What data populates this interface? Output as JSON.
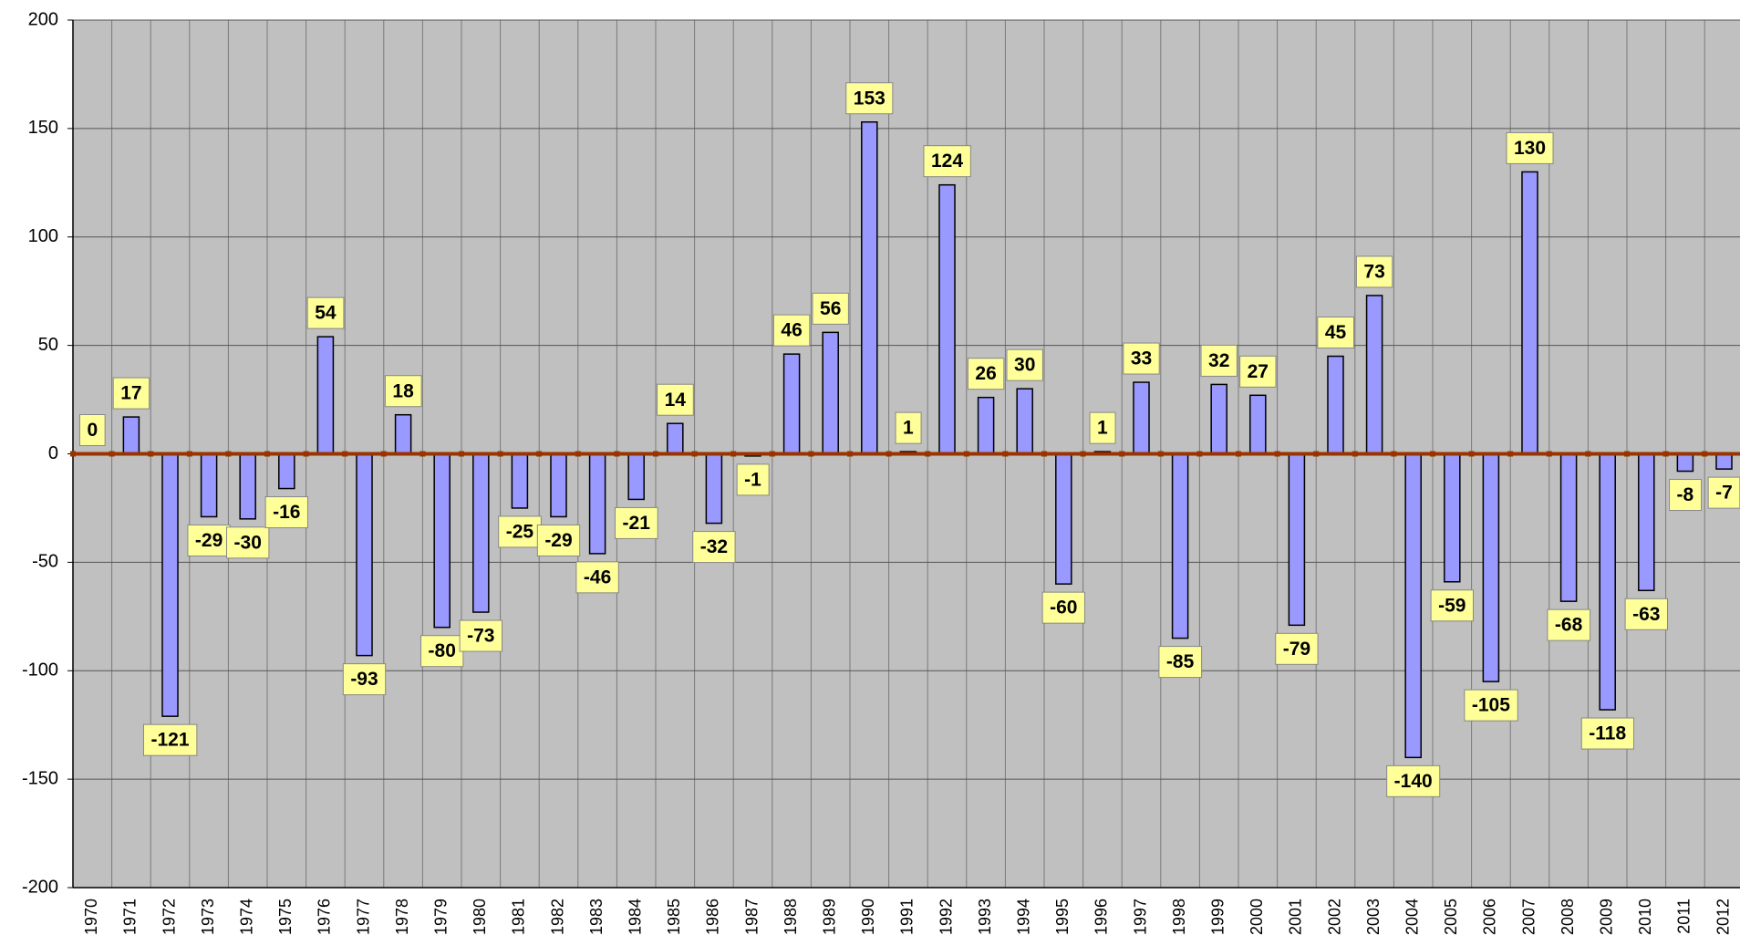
{
  "chart_data": {
    "type": "bar",
    "categories": [
      "1970",
      "1971",
      "1972",
      "1973",
      "1974",
      "1975",
      "1976",
      "1977",
      "1978",
      "1979",
      "1980",
      "1981",
      "1982",
      "1983",
      "1984",
      "1985",
      "1986",
      "1987",
      "1988",
      "1989",
      "1990",
      "1991",
      "1992",
      "1993",
      "1994",
      "1995",
      "1996",
      "1997",
      "1998",
      "1999",
      "2000",
      "2001",
      "2002",
      "2003",
      "2004",
      "2005",
      "2006",
      "2007",
      "2008",
      "2009",
      "2010",
      "2011",
      "2012"
    ],
    "values": [
      0,
      17,
      -121,
      -29,
      -30,
      -16,
      54,
      -93,
      18,
      -80,
      -73,
      -25,
      -29,
      -46,
      -21,
      14,
      -32,
      -1,
      46,
      56,
      153,
      1,
      124,
      26,
      30,
      -60,
      1,
      33,
      -85,
      32,
      27,
      -79,
      45,
      73,
      -140,
      -59,
      -105,
      130,
      -68,
      -118,
      -63,
      -8,
      -7
    ],
    "color": "#9999ff",
    "ylim": [
      -200,
      200
    ],
    "yticks": [
      -200,
      -150,
      -100,
      -50,
      0,
      50,
      100,
      150,
      200
    ],
    "grid": true
  }
}
